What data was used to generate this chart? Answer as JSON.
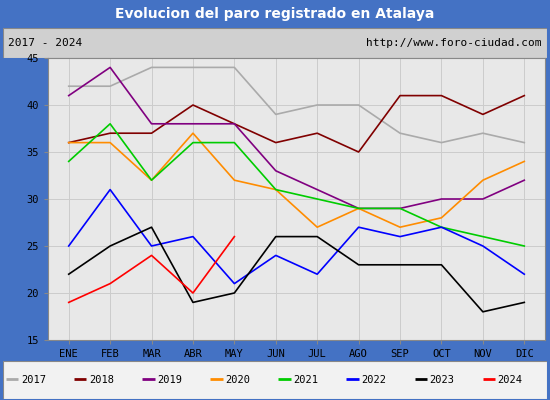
{
  "title": "Evolucion del paro registrado en Atalaya",
  "title_bg": "#4472c4",
  "subtitle_left": "2017 - 2024",
  "subtitle_right": "http://www.foro-ciudad.com",
  "months": [
    "ENE",
    "FEB",
    "MAR",
    "ABR",
    "MAY",
    "JUN",
    "JUL",
    "AGO",
    "SEP",
    "OCT",
    "NOV",
    "DIC"
  ],
  "ylim": [
    15,
    45
  ],
  "yticks": [
    15,
    20,
    25,
    30,
    35,
    40,
    45
  ],
  "series": {
    "2017": {
      "color": "#aaaaaa",
      "values": [
        42,
        42,
        44,
        44,
        44,
        39,
        40,
        40,
        37,
        36,
        37,
        36
      ]
    },
    "2018": {
      "color": "#800000",
      "values": [
        36,
        37,
        37,
        40,
        38,
        36,
        37,
        35,
        41,
        41,
        39,
        41
      ]
    },
    "2019": {
      "color": "#800080",
      "values": [
        41,
        44,
        38,
        38,
        38,
        33,
        31,
        29,
        29,
        30,
        30,
        32
      ]
    },
    "2020": {
      "color": "#ff8c00",
      "values": [
        36,
        36,
        32,
        37,
        32,
        31,
        27,
        29,
        27,
        28,
        32,
        34
      ]
    },
    "2021": {
      "color": "#00cc00",
      "values": [
        34,
        38,
        32,
        36,
        36,
        31,
        30,
        29,
        29,
        27,
        26,
        25
      ]
    },
    "2022": {
      "color": "#0000ff",
      "values": [
        25,
        31,
        25,
        26,
        21,
        24,
        22,
        27,
        26,
        27,
        25,
        22
      ]
    },
    "2023": {
      "color": "#000000",
      "values": [
        22,
        25,
        27,
        19,
        20,
        26,
        26,
        23,
        23,
        23,
        18,
        19
      ]
    },
    "2024": {
      "color": "#ff0000",
      "values": [
        19,
        21,
        24,
        20,
        26,
        null,
        null,
        null,
        null,
        null,
        null,
        null
      ]
    }
  },
  "legend_order": [
    "2017",
    "2018",
    "2019",
    "2020",
    "2021",
    "2022",
    "2023",
    "2024"
  ],
  "grid_color": "#cccccc",
  "plot_bg": "#e8e8e8",
  "subtitle_bg": "#d0d0d0"
}
